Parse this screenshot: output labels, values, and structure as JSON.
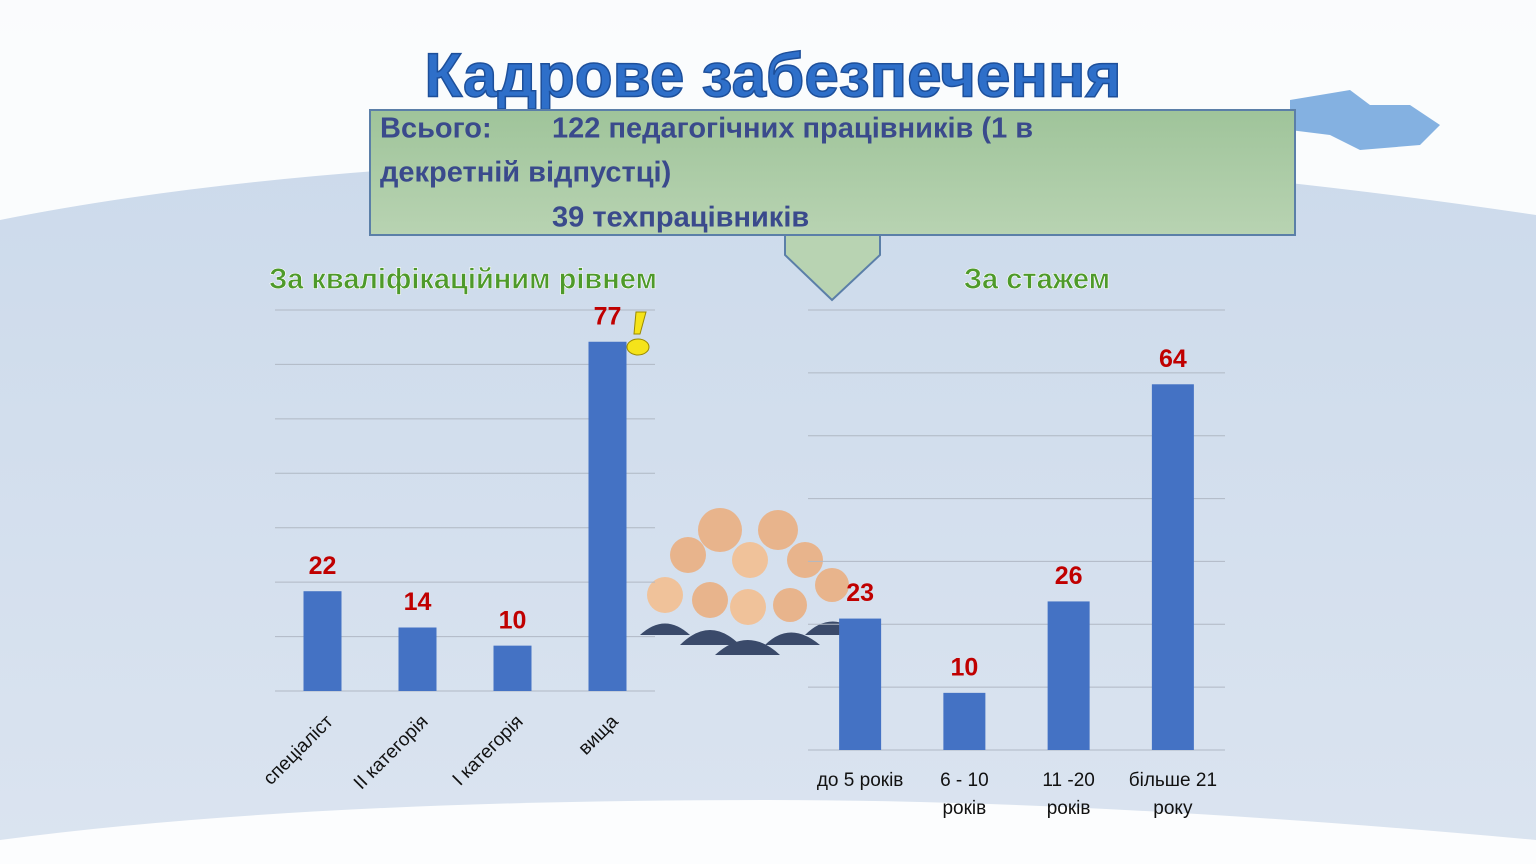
{
  "title": "Кадрове   забезпечення",
  "summary": {
    "label": "Всього:",
    "lines": [
      "122 педагогічних працівників  (1 в",
      "декретній відпустці)",
      "39 техпрацівників"
    ]
  },
  "chart_data": [
    {
      "type": "bar",
      "title": "За кваліфікаційним рівнем",
      "categories": [
        "спеціаліст",
        "ІІ категорія",
        "І категорія",
        "вища"
      ],
      "values": [
        22,
        14,
        10,
        77
      ],
      "color": "#4472c4",
      "label_color": "#c00000",
      "ylim": [
        0,
        84
      ],
      "yticks": [
        0,
        12,
        24,
        36,
        48,
        60,
        72,
        84
      ],
      "grid": true
    },
    {
      "type": "bar",
      "title": "За стажем",
      "categories": [
        "до 5 років",
        "6 - 10\nроків",
        "11 -20\nроків",
        "більше 21\nроку"
      ],
      "values": [
        23,
        10,
        26,
        64
      ],
      "color": "#4472c4",
      "label_color": "#c00000",
      "ylim": [
        0,
        77
      ],
      "yticks": [
        0,
        11,
        22,
        33,
        44,
        55,
        66,
        77
      ],
      "grid": true
    }
  ]
}
